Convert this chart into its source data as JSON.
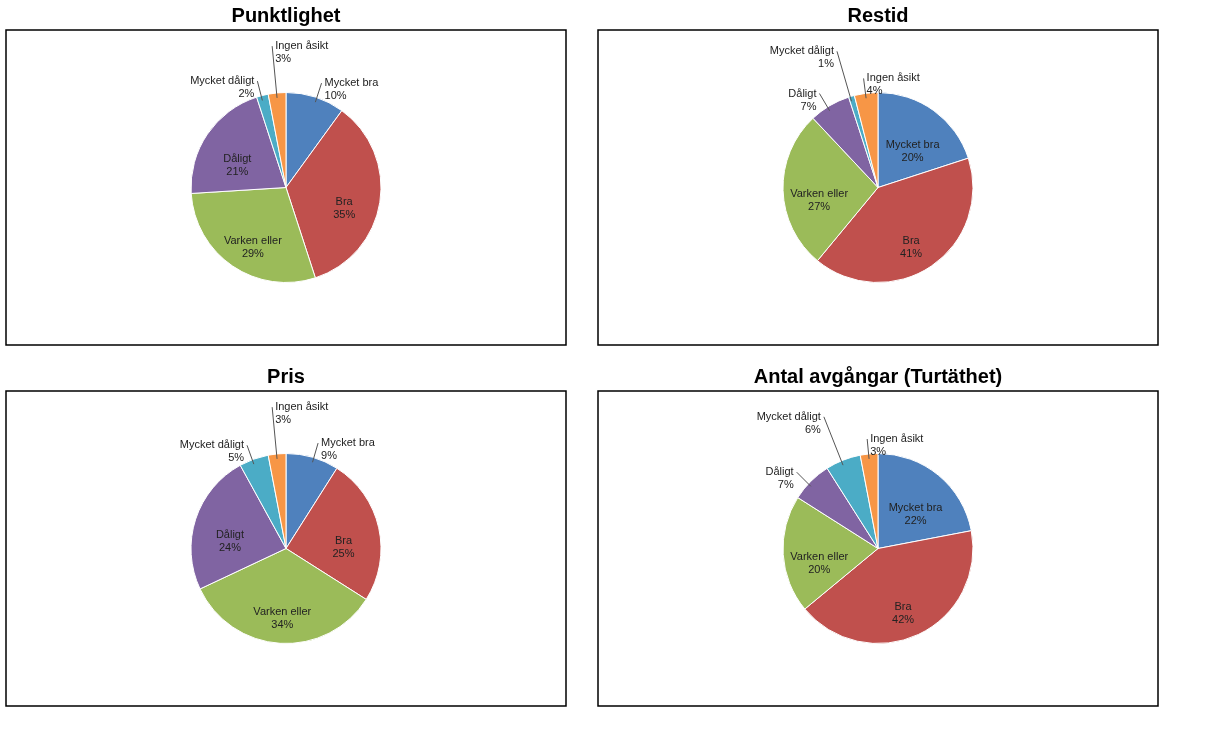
{
  "chart_data": [
    {
      "type": "pie",
      "title": "Punktlighet",
      "categories": [
        "Mycket bra",
        "Bra",
        "Varken eller",
        "Dåligt",
        "Mycket dåligt",
        "Ingen åsikt"
      ],
      "values": [
        10,
        35,
        29,
        21,
        2,
        3
      ],
      "value_labels": [
        "10%",
        "35%",
        "29%",
        "21%",
        "2%",
        "3%"
      ],
      "colors": [
        "#4f81bd",
        "#c0504d",
        "#9bbb59",
        "#8064a2",
        "#4bacc6",
        "#f79646"
      ],
      "legend": false
    },
    {
      "type": "pie",
      "title": "Restid",
      "categories": [
        "Mycket bra",
        "Bra",
        "Varken eller",
        "Dåligt",
        "Mycket dåligt",
        "Ingen åsikt"
      ],
      "values": [
        20,
        41,
        27,
        7,
        1,
        4
      ],
      "value_labels": [
        "20%",
        "41%",
        "27%",
        "7%",
        "1%",
        "4%"
      ],
      "colors": [
        "#4f81bd",
        "#c0504d",
        "#9bbb59",
        "#8064a2",
        "#4bacc6",
        "#f79646"
      ],
      "legend": false
    },
    {
      "type": "pie",
      "title": "Pris",
      "categories": [
        "Mycket bra",
        "Bra",
        "Varken eller",
        "Dåligt",
        "Mycket dåligt",
        "Ingen åsikt"
      ],
      "values": [
        9,
        25,
        34,
        24,
        5,
        3
      ],
      "value_labels": [
        "9%",
        "25%",
        "34%",
        "24%",
        "5%",
        "3%"
      ],
      "colors": [
        "#4f81bd",
        "#c0504d",
        "#9bbb59",
        "#8064a2",
        "#4bacc6",
        "#f79646"
      ],
      "legend": false
    },
    {
      "type": "pie",
      "title": "Antal avgångar (Turtäthet)",
      "categories": [
        "Mycket bra",
        "Bra",
        "Varken eller",
        "Dåligt",
        "Mycket dåligt",
        "Ingen åsikt"
      ],
      "values": [
        22,
        42,
        20,
        7,
        6,
        3
      ],
      "value_labels": [
        "22%",
        "42%",
        "20%",
        "7%",
        "6%",
        "3%"
      ],
      "colors": [
        "#4f81bd",
        "#c0504d",
        "#9bbb59",
        "#8064a2",
        "#4bacc6",
        "#f79646"
      ],
      "legend": false
    }
  ]
}
